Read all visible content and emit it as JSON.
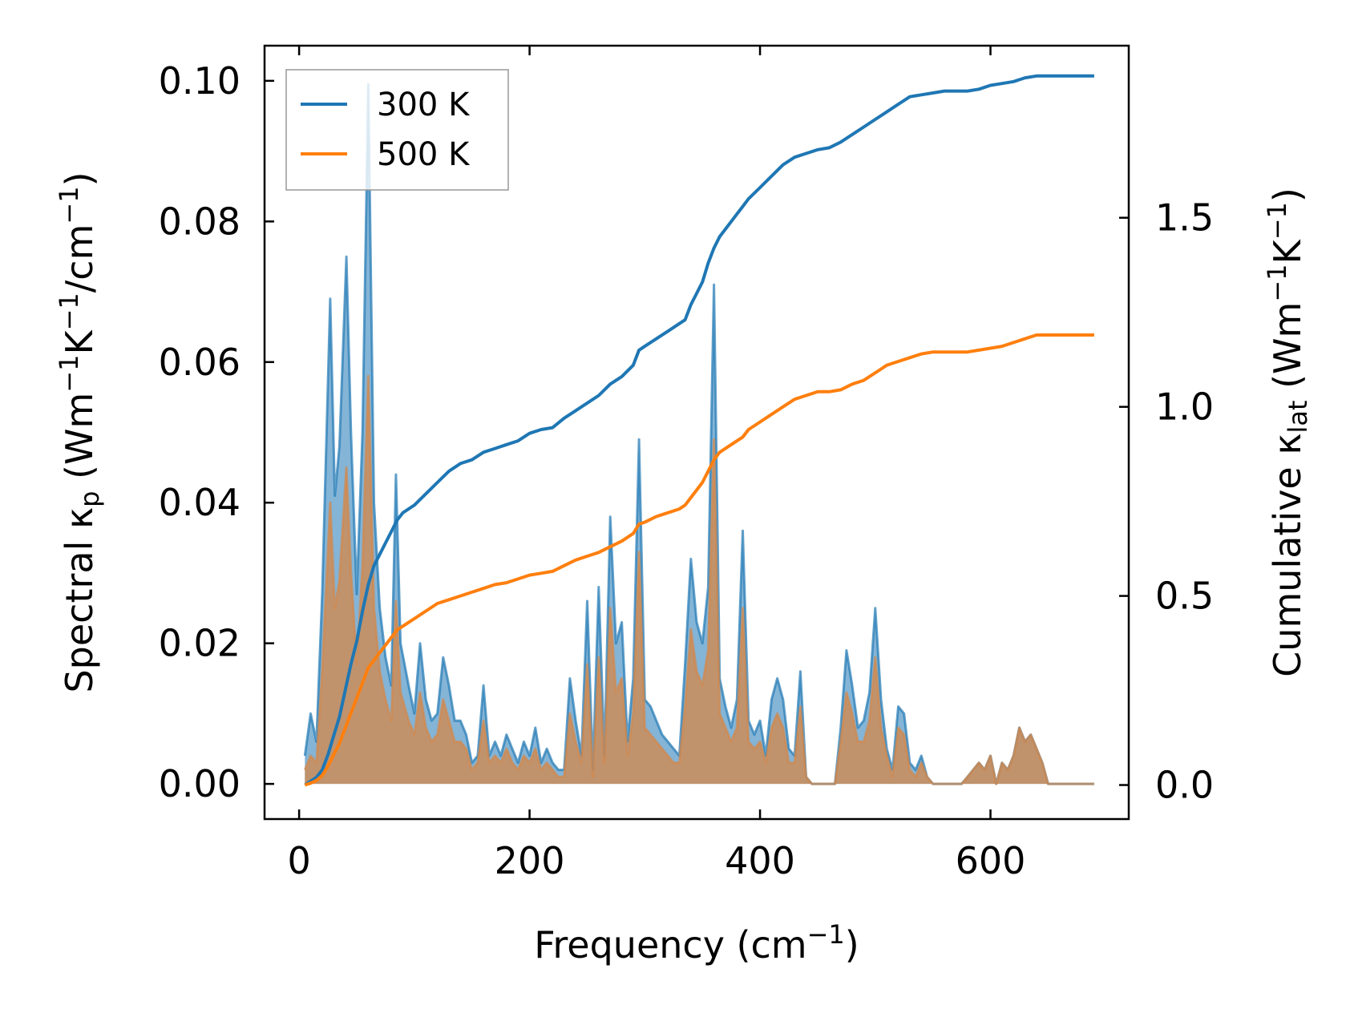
{
  "chart_data": {
    "type": "area",
    "x_label": "Frequency (cm",
    "x_label_sup": "−1",
    "x_label_end": ")",
    "y_left_label_parts": [
      "Spectral κ",
      "p",
      " (Wm",
      "−1",
      "K",
      "−1",
      "/cm",
      "−1",
      ")"
    ],
    "y_right_label_parts": [
      "Cumulative κ",
      "lat",
      " (Wm",
      "−1",
      "K",
      "−1",
      ")"
    ],
    "x_range": [
      -30,
      720
    ],
    "y_left_range": [
      -0.005,
      0.105
    ],
    "y_right_range": [
      -0.09,
      1.955
    ],
    "x_ticks": [
      0,
      200,
      400,
      600
    ],
    "x_tick_labels": [
      "0",
      "200",
      "400",
      "600"
    ],
    "y_left_ticks": [
      0.0,
      0.02,
      0.04,
      0.06,
      0.08,
      0.1
    ],
    "y_left_tick_labels": [
      "0.00",
      "0.02",
      "0.04",
      "0.06",
      "0.08",
      "0.10"
    ],
    "y_right_ticks": [
      0.0,
      0.5,
      1.0,
      1.5
    ],
    "y_right_tick_labels": [
      "0.0",
      "0.5",
      "1.0",
      "1.5"
    ],
    "legend": {
      "position": "top-left",
      "entries": [
        "300 K",
        "500 K"
      ]
    },
    "colors": {
      "300 K": "#1f77b4",
      "500 K": "#ff7f0e",
      "spectral_300": "#1f77b4",
      "spectral_500": "#d4884a"
    },
    "series": [
      {
        "name": "300 K",
        "kind": "spectral",
        "axis": "left",
        "x": [
          5,
          10,
          15,
          20,
          27,
          31,
          35,
          41,
          45,
          50,
          55,
          60,
          65,
          70,
          75,
          80,
          84,
          88,
          95,
          100,
          105,
          110,
          115,
          120,
          125,
          130,
          135,
          140,
          145,
          150,
          155,
          160,
          165,
          170,
          175,
          180,
          185,
          190,
          195,
          200,
          205,
          210,
          215,
          220,
          225,
          230,
          235,
          240,
          245,
          250,
          255,
          260,
          265,
          270,
          275,
          280,
          285,
          290,
          295,
          300,
          305,
          310,
          315,
          320,
          325,
          330,
          335,
          340,
          345,
          350,
          355,
          360,
          365,
          370,
          375,
          380,
          385,
          390,
          395,
          400,
          405,
          410,
          415,
          420,
          425,
          430,
          435,
          440,
          445,
          450,
          455,
          460,
          465,
          470,
          475,
          480,
          485,
          490,
          495,
          500,
          505,
          510,
          515,
          520,
          525,
          530,
          535,
          540,
          545,
          550,
          560,
          570,
          575,
          580,
          585,
          590,
          595,
          600,
          605,
          610,
          615,
          620,
          625,
          630,
          635,
          640,
          645,
          650,
          660,
          690
        ],
        "values": [
          0.004,
          0.01,
          0.006,
          0.027,
          0.069,
          0.041,
          0.048,
          0.075,
          0.05,
          0.027,
          0.05,
          0.0995,
          0.04,
          0.025,
          0.018,
          0.014,
          0.044,
          0.02,
          0.014,
          0.01,
          0.02,
          0.012,
          0.009,
          0.01,
          0.018,
          0.014,
          0.009,
          0.009,
          0.007,
          0.003,
          0.004,
          0.014,
          0.004,
          0.006,
          0.004,
          0.007,
          0.005,
          0.003,
          0.006,
          0.004,
          0.008,
          0.003,
          0.005,
          0.003,
          0.002,
          0.002,
          0.015,
          0.009,
          0.004,
          0.026,
          0.002,
          0.028,
          0.004,
          0.038,
          0.02,
          0.023,
          0.006,
          0.015,
          0.049,
          0.012,
          0.011,
          0.009,
          0.007,
          0.006,
          0.005,
          0.004,
          0.017,
          0.032,
          0.023,
          0.02,
          0.028,
          0.071,
          0.015,
          0.011,
          0.008,
          0.012,
          0.036,
          0.009,
          0.007,
          0.009,
          0.004,
          0.012,
          0.015,
          0.012,
          0.005,
          0.004,
          0.016,
          0.001,
          0.0,
          0.0,
          0.0,
          0.0,
          0.0,
          0.008,
          0.019,
          0.014,
          0.008,
          0.009,
          0.013,
          0.025,
          0.012,
          0.005,
          0.002,
          0.011,
          0.01,
          0.003,
          0.002,
          0.004,
          0.001,
          0.0,
          0.0,
          0.0,
          0.0,
          0.001,
          0.002,
          0.003,
          0.002,
          0.004,
          0.0,
          0.003,
          0.002,
          0.004,
          0.008,
          0.006,
          0.007,
          0.005,
          0.003,
          0.0,
          0.0,
          0.0
        ]
      },
      {
        "name": "500 K",
        "kind": "spectral",
        "axis": "left",
        "x": [
          5,
          10,
          15,
          20,
          27,
          31,
          35,
          41,
          45,
          50,
          55,
          60,
          65,
          70,
          75,
          80,
          84,
          88,
          95,
          100,
          105,
          110,
          115,
          120,
          125,
          130,
          135,
          140,
          145,
          150,
          155,
          160,
          165,
          170,
          175,
          180,
          185,
          190,
          195,
          200,
          205,
          210,
          215,
          220,
          225,
          230,
          235,
          240,
          245,
          250,
          255,
          260,
          265,
          270,
          275,
          280,
          285,
          290,
          295,
          300,
          305,
          310,
          315,
          320,
          325,
          330,
          335,
          340,
          345,
          350,
          355,
          360,
          365,
          370,
          375,
          380,
          385,
          390,
          395,
          400,
          405,
          410,
          415,
          420,
          425,
          430,
          435,
          440,
          445,
          450,
          455,
          460,
          465,
          470,
          475,
          480,
          485,
          490,
          495,
          500,
          505,
          510,
          515,
          520,
          525,
          530,
          535,
          540,
          545,
          550,
          560,
          570,
          575,
          580,
          585,
          590,
          595,
          600,
          605,
          610,
          615,
          620,
          625,
          630,
          635,
          640,
          645,
          650,
          660,
          690
        ],
        "values": [
          0.002,
          0.004,
          0.003,
          0.016,
          0.04,
          0.025,
          0.029,
          0.045,
          0.03,
          0.017,
          0.031,
          0.058,
          0.025,
          0.016,
          0.012,
          0.009,
          0.026,
          0.013,
          0.009,
          0.007,
          0.013,
          0.008,
          0.006,
          0.007,
          0.012,
          0.009,
          0.006,
          0.006,
          0.005,
          0.002,
          0.003,
          0.009,
          0.003,
          0.004,
          0.003,
          0.005,
          0.003,
          0.002,
          0.004,
          0.003,
          0.005,
          0.002,
          0.003,
          0.002,
          0.001,
          0.001,
          0.01,
          0.006,
          0.003,
          0.017,
          0.001,
          0.018,
          0.003,
          0.025,
          0.013,
          0.015,
          0.004,
          0.01,
          0.033,
          0.008,
          0.007,
          0.006,
          0.005,
          0.004,
          0.003,
          0.003,
          0.011,
          0.022,
          0.016,
          0.014,
          0.019,
          0.049,
          0.01,
          0.008,
          0.006,
          0.008,
          0.025,
          0.006,
          0.005,
          0.006,
          0.003,
          0.008,
          0.01,
          0.008,
          0.003,
          0.003,
          0.011,
          0.001,
          0.0,
          0.0,
          0.0,
          0.0,
          0.0,
          0.006,
          0.013,
          0.01,
          0.006,
          0.006,
          0.009,
          0.018,
          0.008,
          0.004,
          0.001,
          0.008,
          0.007,
          0.002,
          0.001,
          0.003,
          0.001,
          0.0,
          0.0,
          0.0,
          0.0,
          0.001,
          0.002,
          0.003,
          0.002,
          0.004,
          0.0,
          0.003,
          0.002,
          0.004,
          0.008,
          0.006,
          0.007,
          0.005,
          0.003,
          0.0,
          0.0,
          0.0
        ]
      },
      {
        "name": "300 K",
        "kind": "cumulative",
        "axis": "right",
        "x": [
          5,
          10,
          15,
          20,
          25,
          30,
          35,
          40,
          45,
          50,
          55,
          60,
          65,
          70,
          75,
          80,
          85,
          90,
          100,
          110,
          120,
          130,
          140,
          150,
          160,
          170,
          180,
          190,
          200,
          210,
          220,
          230,
          240,
          250,
          260,
          270,
          280,
          290,
          295,
          300,
          310,
          320,
          330,
          335,
          340,
          345,
          350,
          355,
          360,
          365,
          370,
          375,
          380,
          385,
          390,
          400,
          410,
          420,
          430,
          440,
          450,
          460,
          470,
          480,
          490,
          500,
          505,
          510,
          520,
          530,
          540,
          550,
          560,
          570,
          580,
          590,
          600,
          610,
          620,
          630,
          640,
          650,
          660,
          690
        ],
        "values": [
          0.0,
          0.01,
          0.02,
          0.04,
          0.08,
          0.13,
          0.18,
          0.25,
          0.32,
          0.38,
          0.46,
          0.53,
          0.58,
          0.61,
          0.64,
          0.67,
          0.7,
          0.72,
          0.74,
          0.77,
          0.8,
          0.83,
          0.85,
          0.86,
          0.88,
          0.89,
          0.9,
          0.91,
          0.93,
          0.94,
          0.945,
          0.97,
          0.99,
          1.01,
          1.03,
          1.06,
          1.08,
          1.11,
          1.15,
          1.16,
          1.18,
          1.2,
          1.22,
          1.23,
          1.27,
          1.3,
          1.33,
          1.38,
          1.42,
          1.45,
          1.47,
          1.49,
          1.51,
          1.53,
          1.55,
          1.58,
          1.61,
          1.64,
          1.66,
          1.67,
          1.68,
          1.685,
          1.7,
          1.72,
          1.74,
          1.76,
          1.77,
          1.78,
          1.8,
          1.82,
          1.825,
          1.83,
          1.835,
          1.835,
          1.835,
          1.84,
          1.85,
          1.855,
          1.86,
          1.87,
          1.875,
          1.875,
          1.875,
          1.875
        ]
      },
      {
        "name": "500 K",
        "kind": "cumulative",
        "axis": "right",
        "x": [
          5,
          10,
          15,
          20,
          25,
          30,
          35,
          40,
          45,
          50,
          55,
          60,
          65,
          70,
          75,
          80,
          85,
          90,
          100,
          110,
          120,
          130,
          140,
          150,
          160,
          170,
          180,
          190,
          200,
          210,
          220,
          230,
          240,
          250,
          260,
          270,
          280,
          290,
          295,
          300,
          310,
          320,
          330,
          335,
          340,
          345,
          350,
          355,
          360,
          365,
          370,
          375,
          380,
          385,
          390,
          400,
          410,
          420,
          430,
          440,
          450,
          460,
          470,
          480,
          490,
          500,
          505,
          510,
          520,
          530,
          540,
          550,
          560,
          570,
          580,
          590,
          600,
          610,
          620,
          630,
          640,
          650,
          660,
          690
        ],
        "values": [
          0.0,
          0.005,
          0.012,
          0.025,
          0.05,
          0.08,
          0.11,
          0.15,
          0.19,
          0.23,
          0.27,
          0.31,
          0.33,
          0.35,
          0.37,
          0.39,
          0.41,
          0.42,
          0.44,
          0.46,
          0.48,
          0.49,
          0.5,
          0.51,
          0.52,
          0.53,
          0.535,
          0.545,
          0.555,
          0.56,
          0.565,
          0.58,
          0.595,
          0.605,
          0.615,
          0.63,
          0.645,
          0.665,
          0.69,
          0.695,
          0.71,
          0.72,
          0.73,
          0.74,
          0.76,
          0.78,
          0.8,
          0.83,
          0.86,
          0.88,
          0.89,
          0.9,
          0.91,
          0.92,
          0.94,
          0.96,
          0.98,
          1.0,
          1.02,
          1.03,
          1.04,
          1.04,
          1.045,
          1.06,
          1.07,
          1.09,
          1.1,
          1.11,
          1.12,
          1.13,
          1.14,
          1.145,
          1.145,
          1.145,
          1.145,
          1.15,
          1.155,
          1.16,
          1.17,
          1.18,
          1.19,
          1.19,
          1.19,
          1.19
        ]
      }
    ]
  }
}
